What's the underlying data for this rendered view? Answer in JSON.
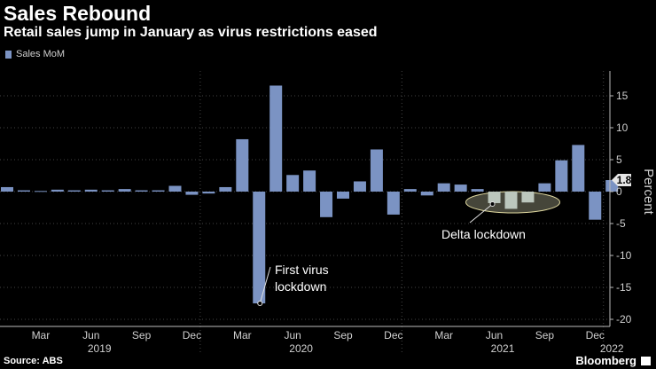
{
  "header": {
    "title": "Sales Rebound",
    "subtitle": "Retail sales jump in January as virus restrictions eased"
  },
  "legend": {
    "label": "Sales MoM",
    "color": "#7b93c3"
  },
  "footer": {
    "source": "Source: ABS",
    "brand": "Bloomberg"
  },
  "chart_data": {
    "type": "bar",
    "title": "Sales Rebound",
    "ylabel": "Percent",
    "ylim": [
      -20,
      20
    ],
    "yticks": [
      15,
      10,
      5,
      0,
      -5,
      -10,
      -15,
      -20
    ],
    "last_value_label": "1.8",
    "categories": [
      "2019-01",
      "2019-02",
      "2019-03",
      "2019-04",
      "2019-05",
      "2019-06",
      "2019-07",
      "2019-08",
      "2019-09",
      "2019-10",
      "2019-11",
      "2019-12",
      "2020-01",
      "2020-02",
      "2020-03",
      "2020-04",
      "2020-05",
      "2020-06",
      "2020-07",
      "2020-08",
      "2020-09",
      "2020-10",
      "2020-11",
      "2020-12",
      "2021-01",
      "2021-02",
      "2021-03",
      "2021-04",
      "2021-05",
      "2021-06",
      "2021-07",
      "2021-08",
      "2021-09",
      "2021-10",
      "2021-11",
      "2021-12",
      "2022-01"
    ],
    "series": [
      {
        "name": "Sales MoM",
        "values": [
          0.7,
          0.2,
          0.1,
          0.3,
          0.2,
          0.3,
          0.2,
          0.4,
          0.2,
          0.2,
          0.9,
          -0.5,
          -0.3,
          0.7,
          8.2,
          -17.5,
          16.6,
          2.6,
          3.3,
          -4.0,
          -1.1,
          1.6,
          6.6,
          -3.6,
          0.4,
          -0.6,
          1.3,
          1.1,
          0.4,
          -1.8,
          -2.7,
          -1.7,
          1.3,
          4.9,
          7.3,
          -4.4,
          1.8
        ]
      }
    ],
    "highlight_months": [
      "2021-06",
      "2021-07",
      "2021-08"
    ],
    "x_month_labels": [
      {
        "month": "2019-03",
        "label": "Mar"
      },
      {
        "month": "2019-06",
        "label": "Jun"
      },
      {
        "month": "2019-09",
        "label": "Sep"
      },
      {
        "month": "2019-12",
        "label": "Dec"
      },
      {
        "month": "2020-03",
        "label": "Mar"
      },
      {
        "month": "2020-06",
        "label": "Jun"
      },
      {
        "month": "2020-09",
        "label": "Sep"
      },
      {
        "month": "2020-12",
        "label": "Dec"
      },
      {
        "month": "2021-03",
        "label": "Mar"
      },
      {
        "month": "2021-06",
        "label": "Jun"
      },
      {
        "month": "2021-09",
        "label": "Sep"
      },
      {
        "month": "2021-12",
        "label": "Dec"
      }
    ],
    "x_year_labels": [
      {
        "year": "2019",
        "from": "2019-01",
        "to": "2019-12"
      },
      {
        "year": "2020",
        "from": "2020-01",
        "to": "2020-12"
      },
      {
        "year": "2021",
        "from": "2021-01",
        "to": "2021-12"
      },
      {
        "year": "2022",
        "from": "2022-01",
        "to": "2022-01"
      }
    ],
    "annotations": [
      {
        "id": "first-virus",
        "lines": [
          "First virus",
          "lockdown"
        ],
        "month": "2020-04",
        "value": -17.5
      },
      {
        "id": "delta",
        "lines": [
          "Delta lockdown"
        ],
        "month": "2021-06",
        "value": -1.8
      }
    ]
  },
  "colors": {
    "bar": "#7b93c3",
    "highlight_bar": "#bcc7bd",
    "ellipse_fill": "#c8c8a6",
    "ellipse_stroke": "#e0d9a0",
    "grid": "#444444",
    "axis_text": "#cfcfcf"
  }
}
